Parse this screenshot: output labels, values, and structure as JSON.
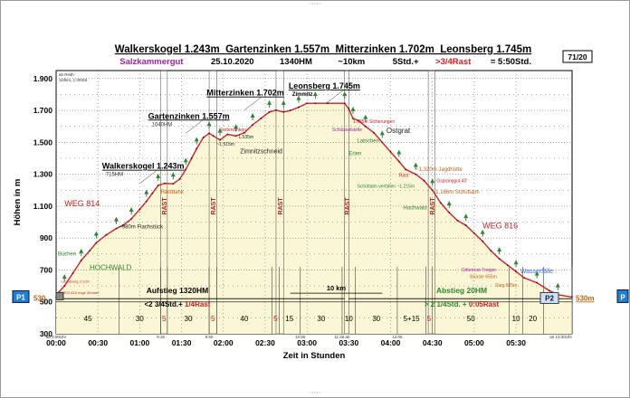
{
  "header": {
    "title": "Walkerskogel 1.243m  Gartenzinken 1.557m  Mitterzinken 1.702m  Leonsberg 1.745m",
    "region": "Salzkammergut",
    "date": "25.10.2020",
    "hm": "1340HM",
    "km": "~10km",
    "duration_plain": "5Std.+",
    "rest_red": ">3/4Rast",
    "total": "= 5:50Std.",
    "page_badge": "71/20"
  },
  "corner_note": [
    "ab Reith",
    "110km, 1:30Std."
  ],
  "chart_data": {
    "type": "area",
    "xlabel": "Zeit in Stunden",
    "ylabel": "Höhen in m",
    "x_unit": "hours",
    "xlim": [
      0,
      6.17
    ],
    "ylim": [
      300,
      1950
    ],
    "x_tick_labels": [
      "00:00",
      "00:30",
      "01:00",
      "01:30",
      "02:00",
      "02:30",
      "03:00",
      "03:30",
      "04:00",
      "04:30",
      "05:00",
      "05:30"
    ],
    "y_tick_labels": [
      "1.900",
      "1.700",
      "1.500",
      "1.300",
      "1.100",
      "900",
      "700",
      "500",
      "300"
    ],
    "grid": true,
    "colors": {
      "fill": "#fbf6d6",
      "line": "#d02020",
      "text_red": "#c02020",
      "text_green": "#2a8a2a",
      "text_orange": "#c06010",
      "text_purple": "#a020a0",
      "text_blue": "#3a6ad0",
      "badge": "#1f7fd0"
    },
    "profile": [
      [
        0.0,
        530
      ],
      [
        0.03,
        560
      ],
      [
        0.1,
        600
      ],
      [
        0.2,
        680
      ],
      [
        0.3,
        760
      ],
      [
        0.4,
        820
      ],
      [
        0.48,
        870
      ],
      [
        0.6,
        920
      ],
      [
        0.72,
        960
      ],
      [
        0.8,
        980
      ],
      [
        0.9,
        1020
      ],
      [
        1.0,
        1080
      ],
      [
        1.08,
        1130
      ],
      [
        1.15,
        1180
      ],
      [
        1.22,
        1230
      ],
      [
        1.3,
        1243
      ],
      [
        1.4,
        1240
      ],
      [
        1.48,
        1270
      ],
      [
        1.55,
        1330
      ],
      [
        1.62,
        1400
      ],
      [
        1.68,
        1460
      ],
      [
        1.76,
        1530
      ],
      [
        1.83,
        1557
      ],
      [
        1.88,
        1540
      ],
      [
        1.96,
        1515
      ],
      [
        2.05,
        1550
      ],
      [
        2.15,
        1540
      ],
      [
        2.25,
        1560
      ],
      [
        2.35,
        1610
      ],
      [
        2.45,
        1650
      ],
      [
        2.55,
        1690
      ],
      [
        2.63,
        1702
      ],
      [
        2.72,
        1690
      ],
      [
        2.8,
        1700
      ],
      [
        2.9,
        1720
      ],
      [
        3.0,
        1745
      ],
      [
        3.1,
        1745
      ],
      [
        3.25,
        1745
      ],
      [
        3.45,
        1745
      ],
      [
        3.5,
        1710
      ],
      [
        3.55,
        1650
      ],
      [
        3.62,
        1635
      ],
      [
        3.7,
        1600
      ],
      [
        3.8,
        1560
      ],
      [
        3.9,
        1500
      ],
      [
        4.0,
        1440
      ],
      [
        4.1,
        1380
      ],
      [
        4.18,
        1330
      ],
      [
        4.3,
        1300
      ],
      [
        4.4,
        1260
      ],
      [
        4.5,
        1200
      ],
      [
        4.6,
        1120
      ],
      [
        4.7,
        1060
      ],
      [
        4.8,
        1010
      ],
      [
        4.9,
        980
      ],
      [
        5.0,
        930
      ],
      [
        5.1,
        880
      ],
      [
        5.2,
        820
      ],
      [
        5.3,
        770
      ],
      [
        5.4,
        730
      ],
      [
        5.5,
        690
      ],
      [
        5.6,
        650
      ],
      [
        5.75,
        620
      ],
      [
        5.9,
        570
      ],
      [
        6.0,
        545
      ],
      [
        6.17,
        530
      ]
    ],
    "rests": [
      {
        "x0": 1.25,
        "x1": 1.33,
        "label": "RAST"
      },
      {
        "x0": 1.83,
        "x1": 1.92,
        "label": "RAST"
      },
      {
        "x0": 2.63,
        "x1": 2.72,
        "label": "RAST"
      },
      {
        "x0": 3.45,
        "x1": 3.5,
        "label": "RAST"
      },
      {
        "x0": 4.45,
        "x1": 4.53,
        "label": "RAST"
      }
    ],
    "segment_boundaries": [
      0.75,
      1.25,
      1.33,
      1.83,
      1.92,
      2.58,
      2.67,
      2.92,
      3.42,
      3.58,
      4.08,
      4.42,
      4.5,
      5.42,
      5.58,
      5.83,
      6.17
    ],
    "segment_minutes": [
      {
        "x": 0.38,
        "label": "45"
      },
      {
        "x": 1.0,
        "label": "30"
      },
      {
        "x": 1.29,
        "label": "5"
      },
      {
        "x": 1.58,
        "label": "30"
      },
      {
        "x": 1.875,
        "label": "5"
      },
      {
        "x": 2.25,
        "label": "40"
      },
      {
        "x": 2.625,
        "label": "5"
      },
      {
        "x": 2.79,
        "label": "15"
      },
      {
        "x": 3.17,
        "label": "30"
      },
      {
        "x": 3.5,
        "label": "10"
      },
      {
        "x": 3.83,
        "label": "30"
      },
      {
        "x": 4.25,
        "label": "5+15"
      },
      {
        "x": 4.46,
        "label": "5"
      },
      {
        "x": 4.96,
        "label": "50"
      },
      {
        "x": 5.5,
        "label": "10"
      },
      {
        "x": 5.7,
        "label": "20"
      }
    ],
    "time_marks": [
      {
        "x": 0.0,
        "label": "ab 8:00Uhr"
      },
      {
        "x": 1.25,
        "label": "9:15"
      },
      {
        "x": 1.83,
        "label": "9:50"
      },
      {
        "x": 2.92,
        "label": "10:55"
      },
      {
        "x": 3.42,
        "label": "11:25 ab"
      },
      {
        "x": 4.08,
        "label": "12:05"
      },
      {
        "x": 6.17,
        "label": "an 13:30Uhr"
      }
    ],
    "summit_labels": [
      {
        "x": 0.55,
        "y": 1243,
        "text": "Walkerskogel  1.243m",
        "sub": "715HM"
      },
      {
        "x": 1.1,
        "y": 1557,
        "text": "Gartenzinken 1.557m",
        "sub": "1040HM"
      },
      {
        "x": 1.8,
        "y": 1702,
        "text": "Mitterzinken 1.702m",
        "sub": ""
      },
      {
        "x": 2.78,
        "y": 1745,
        "text": "Leonsberg 1.745m",
        "sub": "Zimmitz"
      }
    ],
    "annotations": [
      {
        "x": 0.1,
        "y": 1100,
        "text": "WEG 814",
        "color": "red",
        "size": 9
      },
      {
        "x": 0.4,
        "y": 700,
        "text": "HOCHWALD",
        "color": "green",
        "size": 8
      },
      {
        "x": 0.02,
        "y": 790,
        "text": "Buchen",
        "color": "green",
        "size": 6
      },
      {
        "x": 0.75,
        "y": 960,
        "text": "~980m Flachstück",
        "color": "black",
        "size": 6
      },
      {
        "x": 1.25,
        "y": 1180,
        "text": "Rastbank",
        "color": "orange",
        "size": 6
      },
      {
        "x": 1.95,
        "y": 1570,
        "text": "Gartenzinken",
        "color": "red",
        "size": 5
      },
      {
        "x": 1.92,
        "y": 1480,
        "text": "~1.515m",
        "color": "black",
        "size": 5
      },
      {
        "x": 2.18,
        "y": 1525,
        "text": "1.535m",
        "color": "black",
        "size": 5
      },
      {
        "x": 2.2,
        "y": 1430,
        "text": "Zimnitzschneid",
        "color": "black",
        "size": 7
      },
      {
        "x": 3.55,
        "y": 1620,
        "text": "1.635m Sicherungen",
        "color": "red",
        "size": 5
      },
      {
        "x": 3.3,
        "y": 1570,
        "text": "Schlüsselstelle",
        "color": "purple",
        "size": 5
      },
      {
        "x": 3.95,
        "y": 1560,
        "text": "Ostgrat",
        "color": "black",
        "size": 8
      },
      {
        "x": 3.6,
        "y": 1500,
        "text": "Latschen",
        "color": "green",
        "size": 6
      },
      {
        "x": 3.5,
        "y": 1420,
        "text": "Erlen",
        "color": "green",
        "size": 6
      },
      {
        "x": 4.3,
        "y": 1320,
        "text": "~1.320m Jagdhütte",
        "color": "orange",
        "size": 6
      },
      {
        "x": 4.1,
        "y": 1283,
        "text": "Rast",
        "color": "red",
        "size": 5
      },
      {
        "x": 4.55,
        "y": 1250,
        "text": "Gspranggut 40'",
        "color": "red",
        "size": 5
      },
      {
        "x": 3.6,
        "y": 1215,
        "text": "Schüttalm verfallen ~1.215m",
        "color": "green",
        "size": 5
      },
      {
        "x": 4.5,
        "y": 1180,
        "text": "~1.166m Schüttalm",
        "color": "orange",
        "size": 6
      },
      {
        "x": 4.15,
        "y": 1080,
        "text": "Hochwald",
        "color": "green",
        "size": 6
      },
      {
        "x": 5.1,
        "y": 960,
        "text": "WEG 816",
        "color": "red",
        "size": 9
      },
      {
        "x": 4.85,
        "y": 690,
        "text": "Gitterrost-Treppe",
        "color": "purple",
        "size": 5
      },
      {
        "x": 5.55,
        "y": 680,
        "text": "Wasserfälle",
        "color": "blue",
        "size": 7
      },
      {
        "x": 4.95,
        "y": 650,
        "text": "Brücke 655m",
        "color": "orange",
        "size": 5
      },
      {
        "x": 5.25,
        "y": 595,
        "text": "Steg 605m",
        "color": "orange",
        "size": 5
      },
      {
        "x": 0.06,
        "y": 620,
        "text": "Leonsberg 3 1/2h",
        "color": "red",
        "size": 4
      },
      {
        "x": 0.06,
        "y": 550,
        "text": "WEG 816 enge Zimmer",
        "color": "red",
        "size": 4
      }
    ],
    "aufstieg_label_1": "Aufstieg 1320HM",
    "aufstieg_label_2_black": "<2 3/4Std.+",
    "aufstieg_label_2_red": " 1/4Rast",
    "abstieg_label_1": "Abstieg 20HM",
    "abstieg_label_2_green": "> 2 1/4Std. +",
    "abstieg_label_2_red": " 0:05Rast",
    "distance_label": "10 km",
    "p1": {
      "label": "P1",
      "alt": "530"
    },
    "p2": {
      "label": "P2",
      "alt": "530m",
      "badge": "P"
    }
  }
}
